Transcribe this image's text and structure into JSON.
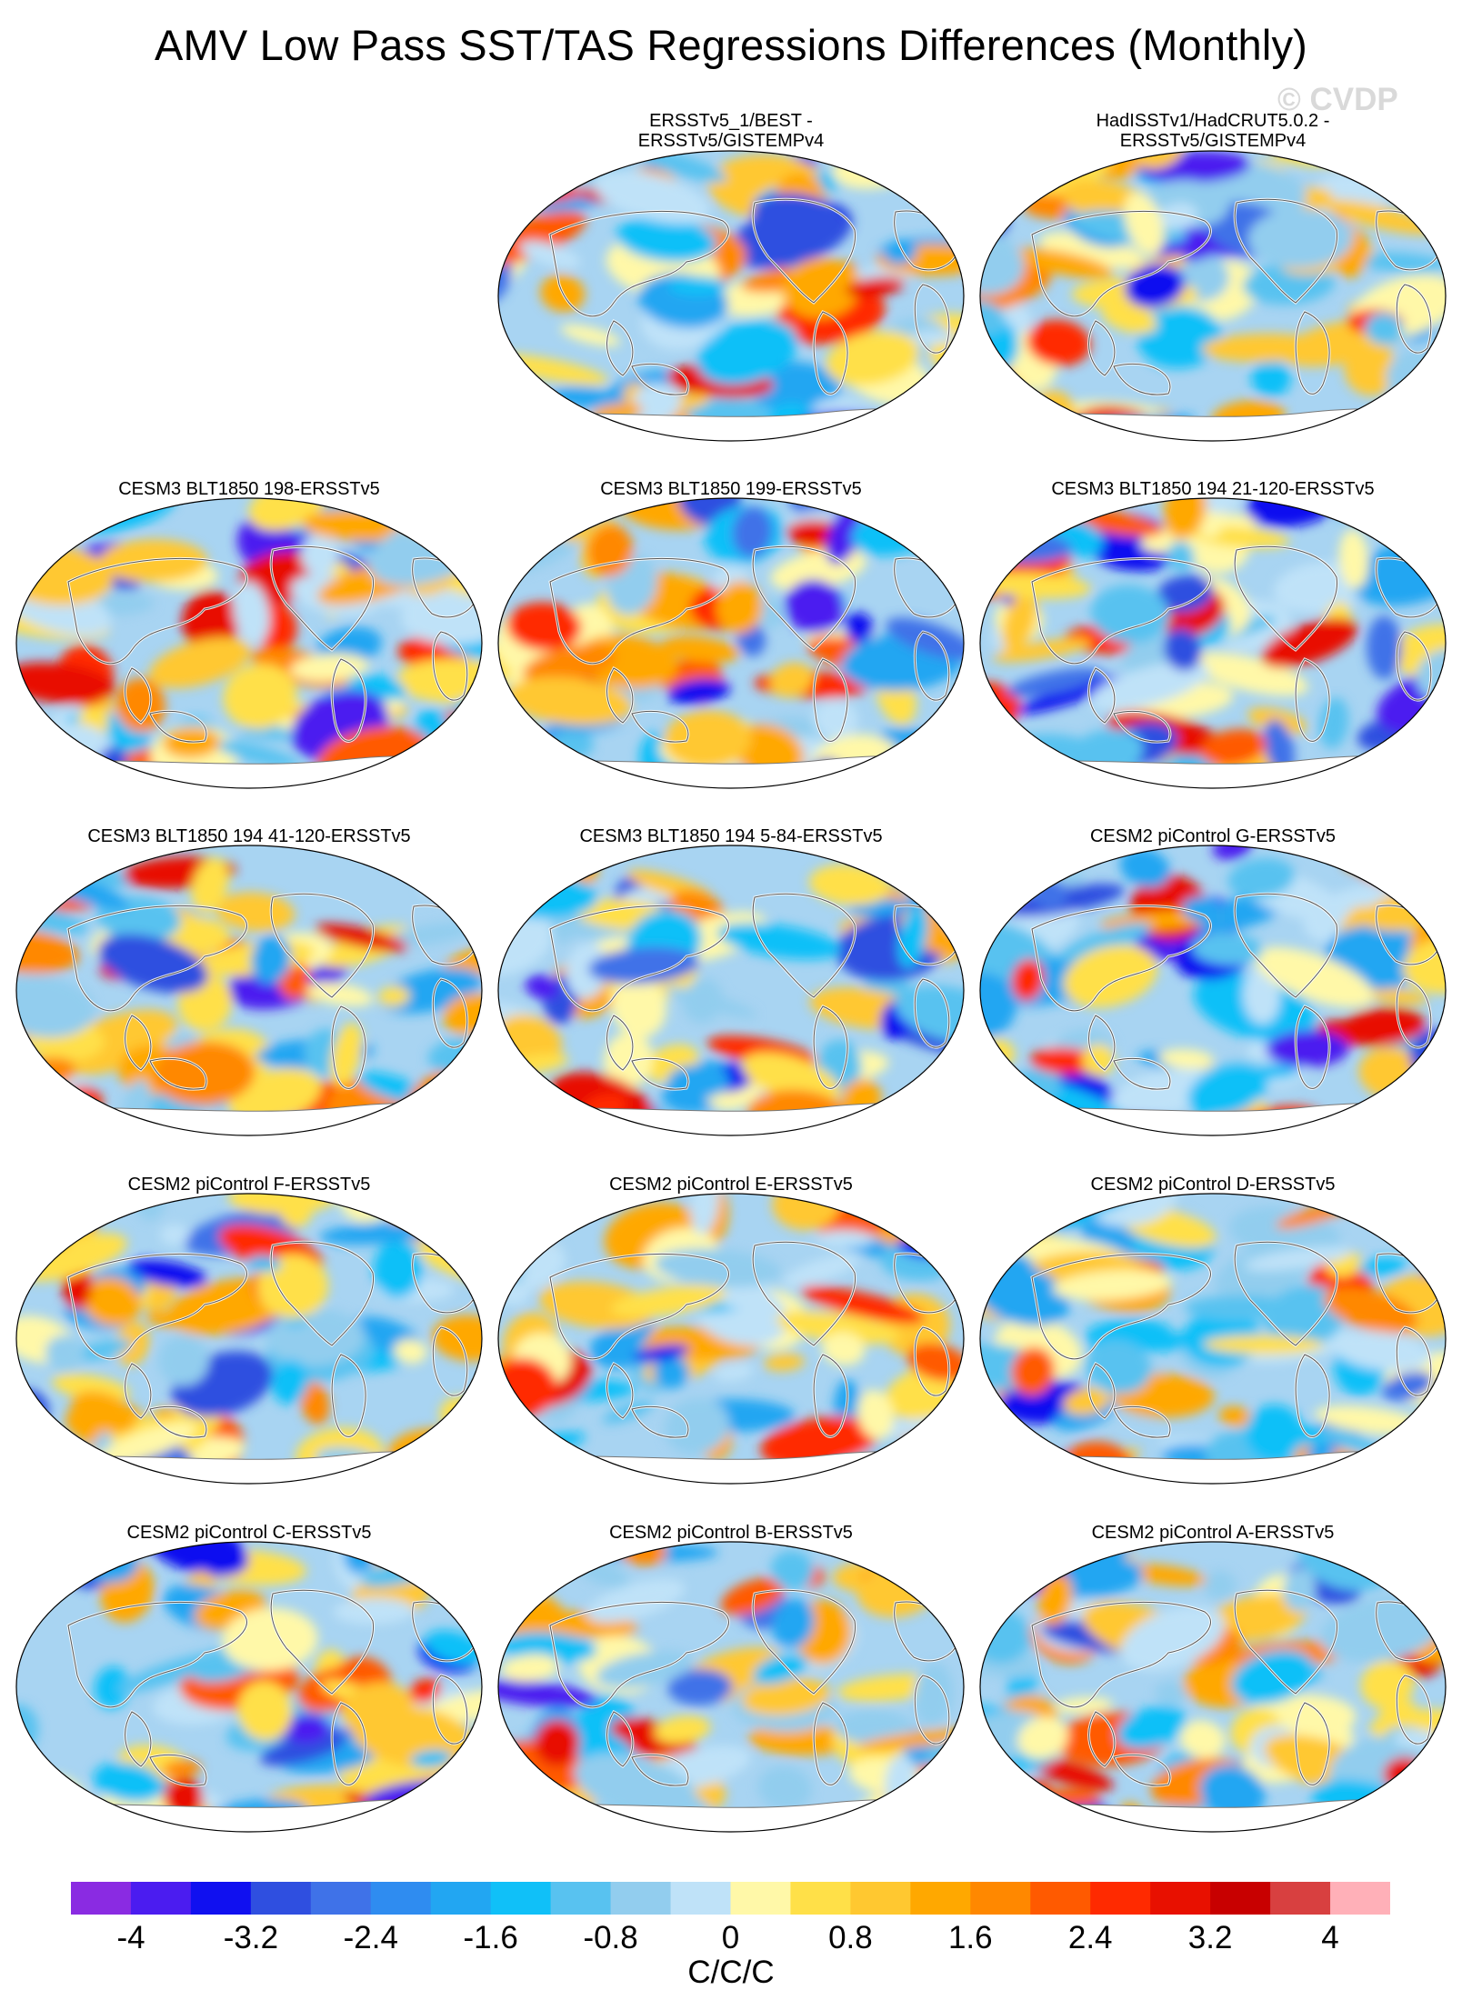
{
  "title": "AMV Low Pass SST/TAS Regressions Differences (Monthly)",
  "watermark": "© CVDP",
  "panels": [
    {
      "title_lines": [
        "ERSSTv5_1/BEST -",
        "ERSSTv5/GISTEMPv4"
      ],
      "pattern": 1
    },
    {
      "title_lines": [
        "HadISSTv1/HadCRUT5.0.2 -",
        "ERSSTv5/GISTEMPv4"
      ],
      "pattern": 2
    },
    {
      "title_lines": [
        "CESM3 BLT1850 198-ERSSTv5"
      ],
      "pattern": 3
    },
    {
      "title_lines": [
        "CESM3 BLT1850 199-ERSSTv5"
      ],
      "pattern": 4
    },
    {
      "title_lines": [
        "CESM3 BLT1850 194 21-120-ERSSTv5"
      ],
      "pattern": 5
    },
    {
      "title_lines": [
        "CESM3 BLT1850 194 41-120-ERSSTv5"
      ],
      "pattern": 6
    },
    {
      "title_lines": [
        "CESM3 BLT1850 194 5-84-ERSSTv5"
      ],
      "pattern": 7
    },
    {
      "title_lines": [
        "CESM2 piControl G-ERSSTv5"
      ],
      "pattern": 8
    },
    {
      "title_lines": [
        "CESM2 piControl F-ERSSTv5"
      ],
      "pattern": 9
    },
    {
      "title_lines": [
        "CESM2 piControl E-ERSSTv5"
      ],
      "pattern": 10
    },
    {
      "title_lines": [
        "CESM2 piControl D-ERSSTv5"
      ],
      "pattern": 11
    },
    {
      "title_lines": [
        "CESM2 piControl C-ERSSTv5"
      ],
      "pattern": 12
    },
    {
      "title_lines": [
        "CESM2 piControl B-ERSSTv5"
      ],
      "pattern": 13
    },
    {
      "title_lines": [
        "CESM2 piControl A-ERSSTv5"
      ],
      "pattern": 14
    }
  ],
  "colorbar": {
    "colors": [
      "#8a2be2",
      "#4b1cf0",
      "#1010f0",
      "#2f4fe0",
      "#3f72e8",
      "#2f8cf0",
      "#22a6f2",
      "#10c0f8",
      "#58c2f0",
      "#92cdee",
      "#bfe2f8",
      "#fff8a8",
      "#ffe048",
      "#ffc830",
      "#ffa800",
      "#ff8800",
      "#ff5a00",
      "#ff2a00",
      "#e81000",
      "#c80000",
      "#d84040",
      "#ffb0b8"
    ],
    "labels": [
      "-4",
      "-3.2",
      "-2.4",
      "-1.6",
      "-0.8",
      "0",
      "0.8",
      "1.6",
      "2.4",
      "3.2",
      "4"
    ],
    "units": "C/C/C"
  }
}
